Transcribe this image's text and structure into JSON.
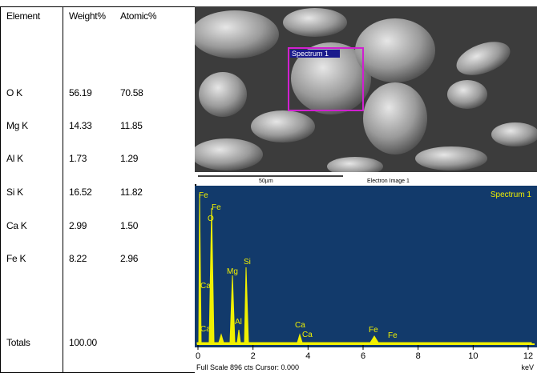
{
  "table": {
    "header": [
      "Element",
      "Weight%",
      "Atomic%"
    ],
    "rows": [
      [
        "O K",
        "56.19",
        "70.58"
      ],
      [
        "Mg K",
        "14.33",
        "11.85"
      ],
      [
        "Al K",
        "1.73",
        "1.29"
      ],
      [
        "Si K",
        "16.52",
        "11.82"
      ],
      [
        "Ca K",
        "2.99",
        "1.50"
      ],
      [
        "Fe K",
        "8.22",
        "2.96"
      ]
    ],
    "totals": [
      "Totals",
      "100.00"
    ]
  },
  "image": {
    "label": "Spectrum 1",
    "scale_bar": "50µm",
    "caption": "Electron Image 1"
  },
  "spectrum": {
    "title": "Spectrum 1",
    "peak_labels": [
      "Fe",
      "Fe",
      "O",
      "Ca",
      "Mg",
      "Si",
      "Ca",
      "Al",
      "Ca",
      "Ca",
      "Fe",
      "Fe"
    ],
    "xlim": [
      0,
      12
    ],
    "xticks": [
      0,
      2,
      4,
      6,
      8,
      10,
      12
    ],
    "unit": "keV",
    "status": "Full Scale 896 cts Cursor: 0.000"
  }
}
